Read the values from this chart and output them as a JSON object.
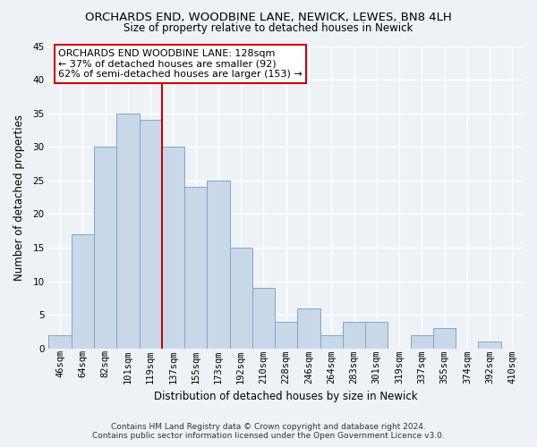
{
  "title": "ORCHARDS END, WOODBINE LANE, NEWICK, LEWES, BN8 4LH",
  "subtitle": "Size of property relative to detached houses in Newick",
  "xlabel": "Distribution of detached houses by size in Newick",
  "ylabel": "Number of detached properties",
  "bar_labels": [
    "46sqm",
    "64sqm",
    "82sqm",
    "101sqm",
    "119sqm",
    "137sqm",
    "155sqm",
    "173sqm",
    "192sqm",
    "210sqm",
    "228sqm",
    "246sqm",
    "264sqm",
    "283sqm",
    "301sqm",
    "319sqm",
    "337sqm",
    "355sqm",
    "374sqm",
    "392sqm",
    "410sqm"
  ],
  "bar_values": [
    2,
    17,
    30,
    35,
    34,
    30,
    24,
    25,
    15,
    9,
    4,
    6,
    2,
    4,
    4,
    0,
    2,
    3,
    0,
    1,
    0
  ],
  "bar_color": "#c8d8e8",
  "bar_edge_color": "#7aaac8",
  "marker_line_index": 4,
  "marker_line_color": "#cc0000",
  "annotation_line1": "ORCHARDS END WOODBINE LANE: 128sqm",
  "annotation_line2": "← 37% of detached houses are smaller (92)",
  "annotation_line3": "62% of semi-detached houses are larger (153) →",
  "annotation_box_facecolor": "#ffffff",
  "annotation_box_edgecolor": "#cc0000",
  "ylim": [
    0,
    45
  ],
  "yticks": [
    0,
    5,
    10,
    15,
    20,
    25,
    30,
    35,
    40,
    45
  ],
  "footer_line1": "Contains HM Land Registry data © Crown copyright and database right 2024.",
  "footer_line2": "Contains public sector information licensed under the Open Government Licence v3.0.",
  "bg_color": "#eef2f7",
  "plot_bg_color": "#eef2f7",
  "grid_color": "#ffffff",
  "title_fontsize": 9.5,
  "subtitle_fontsize": 8.5,
  "xlabel_fontsize": 8.5,
  "ylabel_fontsize": 8.5,
  "tick_fontsize": 7.5,
  "footer_fontsize": 6.5,
  "ann_fontsize": 8.0
}
